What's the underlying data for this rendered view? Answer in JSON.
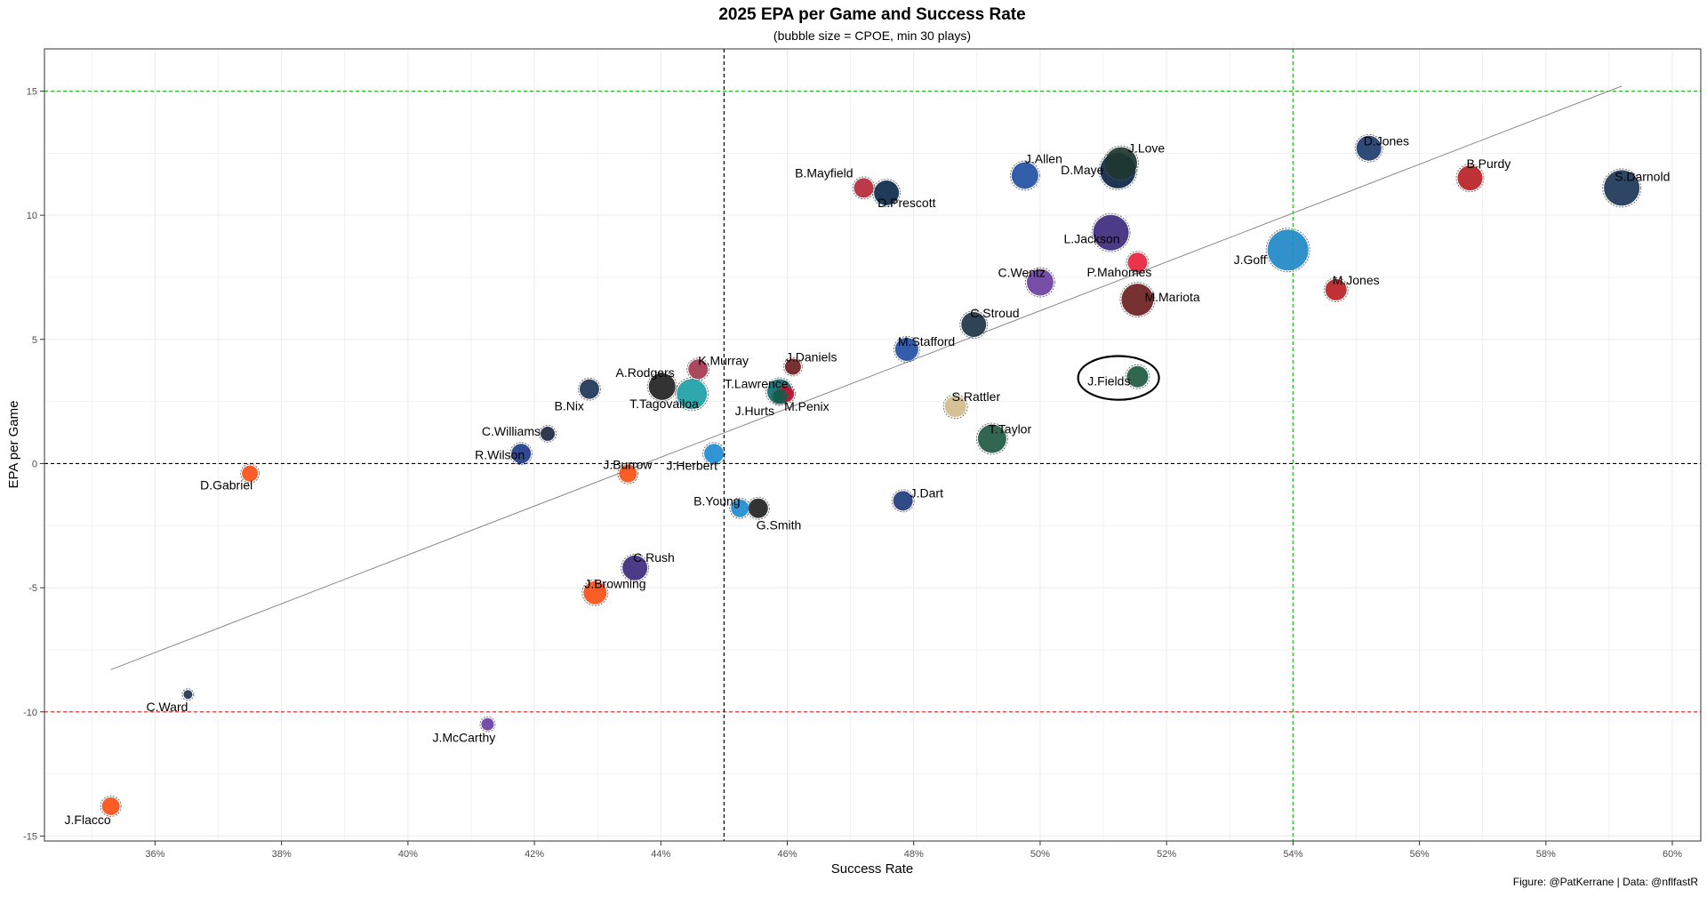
{
  "chart_data": {
    "type": "scatter",
    "title": "2025 EPA per Game and Success Rate",
    "subtitle": "(bubble size = CPOE, min 30 plays)",
    "xlabel": "Success Rate",
    "ylabel": "EPA per Game",
    "caption": "Figure: @PatKerrane | Data: @nflfastR",
    "xlim": [
      0.3425,
      0.6045
    ],
    "ylim": [
      -15.2,
      16.7
    ],
    "x_ticks": [
      0.36,
      0.38,
      0.4,
      0.42,
      0.44,
      0.46,
      0.48,
      0.5,
      0.52,
      0.54,
      0.56,
      0.58,
      0.6
    ],
    "x_tick_labels": [
      "36%",
      "38%",
      "40%",
      "42%",
      "44%",
      "46%",
      "48%",
      "50%",
      "52%",
      "54%",
      "56%",
      "58%",
      "60%"
    ],
    "y_ticks": [
      -15,
      -10,
      -5,
      0,
      5,
      10,
      15
    ],
    "y_tick_labels": [
      "-15",
      "-10",
      "-5",
      "0",
      "5",
      "10",
      "15"
    ],
    "grid": true,
    "reference_lines": [
      {
        "axis": "y",
        "value": 15,
        "color": "#22bb22",
        "dash": true
      },
      {
        "axis": "y",
        "value": 0,
        "color": "#000000",
        "dash": true
      },
      {
        "axis": "y",
        "value": -10,
        "color": "#ee3333",
        "dash": true
      },
      {
        "axis": "x",
        "value": 0.45,
        "color": "#000000",
        "dash": true
      },
      {
        "axis": "x",
        "value": 0.54,
        "color": "#22bb22",
        "dash": true
      }
    ],
    "trend_line": {
      "x": [
        0.353,
        0.592
      ],
      "y": [
        -8.3,
        15.2
      ],
      "color": "#888888"
    },
    "highlight_ellipse": {
      "cx": 0.5124,
      "cy": 3.45,
      "rx": 0.0064,
      "ry": 0.88
    },
    "points": [
      {
        "name": "D.Jones",
        "x": 0.552,
        "y": 12.7,
        "size": 28,
        "color": "#1f3c6e"
      },
      {
        "name": "S.Darnold",
        "x": 0.592,
        "y": 11.1,
        "size": 40,
        "color": "#1d3557"
      },
      {
        "name": "B.Purdy",
        "x": 0.568,
        "y": 11.5,
        "size": 28,
        "color": "#b81f24"
      },
      {
        "name": "J.Love",
        "x": 0.5128,
        "y": 12.1,
        "size": 36,
        "color": "#203731"
      },
      {
        "name": "D.Maye",
        "x": 0.5123,
        "y": 11.8,
        "size": 40,
        "color": "#0b2545"
      },
      {
        "name": "J.Allen",
        "x": 0.4976,
        "y": 11.6,
        "size": 30,
        "color": "#1f4fa3"
      },
      {
        "name": "B.Mayfield",
        "x": 0.4721,
        "y": 11.1,
        "size": 22,
        "color": "#b5283a"
      },
      {
        "name": "D.Prescott",
        "x": 0.4757,
        "y": 10.9,
        "size": 28,
        "color": "#0b2a4c"
      },
      {
        "name": "L.Jackson",
        "x": 0.5112,
        "y": 9.3,
        "size": 40,
        "color": "#3d2a7d"
      },
      {
        "name": "J.Goff",
        "x": 0.5392,
        "y": 8.6,
        "size": 46,
        "color": "#1e88c7"
      },
      {
        "name": "P.Mahomes",
        "x": 0.5154,
        "y": 8.1,
        "size": 22,
        "color": "#e8233f"
      },
      {
        "name": "C.Wentz",
        "x": 0.5,
        "y": 7.3,
        "size": 30,
        "color": "#6a3fa0"
      },
      {
        "name": "M.Jones",
        "x": 0.5468,
        "y": 7.0,
        "size": 24,
        "color": "#b81f24"
      },
      {
        "name": "M.Mariota",
        "x": 0.5154,
        "y": 6.6,
        "size": 36,
        "color": "#6b1f1f"
      },
      {
        "name": "C.Stroud",
        "x": 0.4895,
        "y": 5.6,
        "size": 28,
        "color": "#203448"
      },
      {
        "name": "M.Stafford",
        "x": 0.4789,
        "y": 4.6,
        "size": 26,
        "color": "#1f4fa3"
      },
      {
        "name": "J.Fields",
        "x": 0.5154,
        "y": 3.5,
        "size": 24,
        "color": "#1f5a42"
      },
      {
        "name": "K.Murray",
        "x": 0.4459,
        "y": 3.8,
        "size": 22,
        "color": "#a5384f"
      },
      {
        "name": "J.Daniels",
        "x": 0.4609,
        "y": 3.9,
        "size": 18,
        "color": "#6b1f1f"
      },
      {
        "name": "A.Rodgers",
        "x": 0.4402,
        "y": 3.1,
        "size": 30,
        "color": "#222222"
      },
      {
        "name": "T.Tagovailoa",
        "x": 0.4449,
        "y": 2.8,
        "size": 34,
        "color": "#1ca1a6"
      },
      {
        "name": "B.Nix",
        "x": 0.4287,
        "y": 3.0,
        "size": 22,
        "color": "#1d3557"
      },
      {
        "name": "T.Lawrence",
        "x": 0.4588,
        "y": 2.9,
        "size": 28,
        "color": "#0e6e70"
      },
      {
        "name": "M.Penix",
        "x": 0.4598,
        "y": 2.8,
        "size": 18,
        "color": "#c4102f"
      },
      {
        "name": "J.Hurts",
        "x": 0.4588,
        "y": 2.7,
        "size": 16,
        "color": "#145c4a"
      },
      {
        "name": "S.Rattler",
        "x": 0.4866,
        "y": 2.3,
        "size": 24,
        "color": "#d3bc8d"
      },
      {
        "name": "T.Taylor",
        "x": 0.4924,
        "y": 1.0,
        "size": 32,
        "color": "#1f5a42"
      },
      {
        "name": "C.Williams",
        "x": 0.4221,
        "y": 1.2,
        "size": 16,
        "color": "#1d2841"
      },
      {
        "name": "R.Wilson",
        "x": 0.4179,
        "y": 0.4,
        "size": 22,
        "color": "#1f3c8a"
      },
      {
        "name": "J.Herbert",
        "x": 0.4484,
        "y": 0.4,
        "size": 22,
        "color": "#1f8bd1"
      },
      {
        "name": "J.Burrow",
        "x": 0.4348,
        "y": -0.4,
        "size": 20,
        "color": "#fb4f14"
      },
      {
        "name": "D.Gabriel",
        "x": 0.375,
        "y": -0.4,
        "size": 18,
        "color": "#fb4f14"
      },
      {
        "name": "B.Young",
        "x": 0.4525,
        "y": -1.8,
        "size": 20,
        "color": "#1f8bd1"
      },
      {
        "name": "G.Smith",
        "x": 0.4554,
        "y": -1.8,
        "size": 22,
        "color": "#222222"
      },
      {
        "name": "J.Dart",
        "x": 0.4783,
        "y": -1.5,
        "size": 22,
        "color": "#1f3c7e"
      },
      {
        "name": "C.Rush",
        "x": 0.4359,
        "y": -4.2,
        "size": 28,
        "color": "#3d2a7d"
      },
      {
        "name": "J.Browning",
        "x": 0.4296,
        "y": -5.2,
        "size": 26,
        "color": "#fb4f14"
      },
      {
        "name": "C.Ward",
        "x": 0.3652,
        "y": -9.3,
        "size": 10,
        "color": "#1d3557"
      },
      {
        "name": "J.McCarthy",
        "x": 0.4126,
        "y": -10.5,
        "size": 14,
        "color": "#6a3fa0"
      },
      {
        "name": "J.Flacco",
        "x": 0.353,
        "y": -13.8,
        "size": 20,
        "color": "#fb4f14"
      }
    ]
  }
}
